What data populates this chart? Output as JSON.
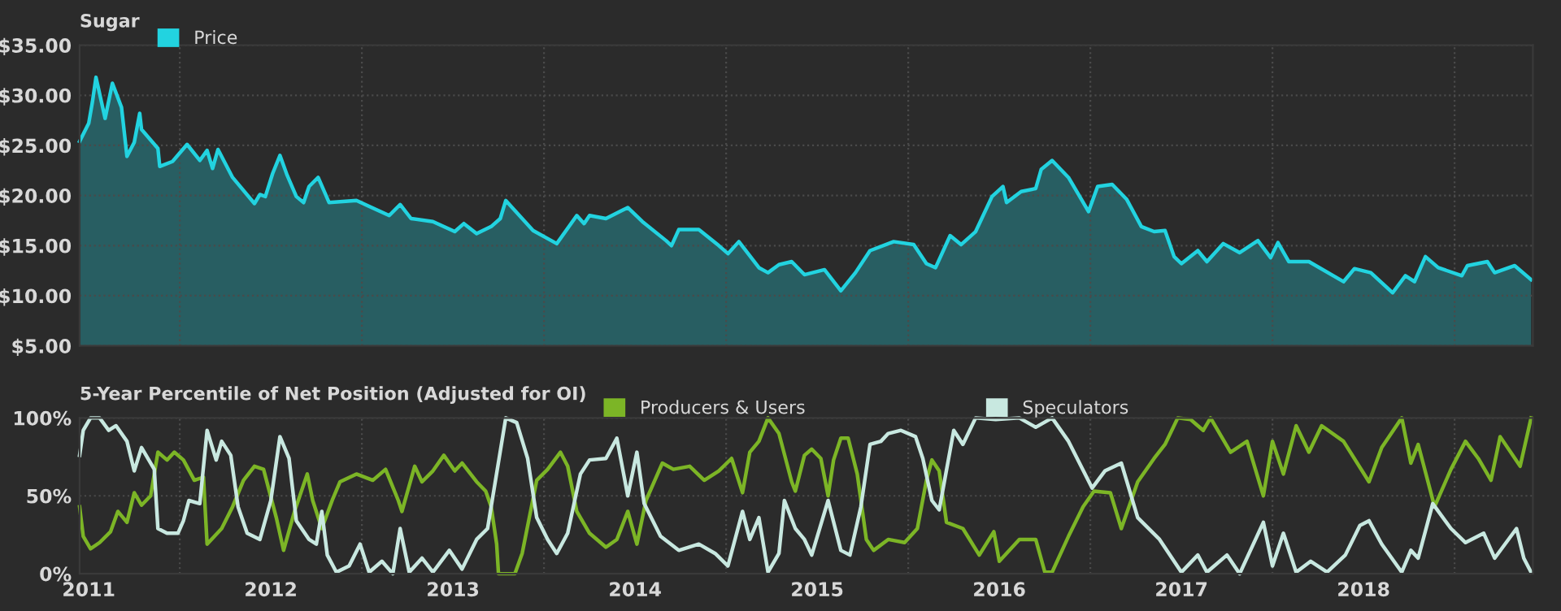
{
  "chart_data": [
    {
      "type": "area",
      "title": "Sugar",
      "legend": "top left",
      "grid": true,
      "tick_labels": "y",
      "xlim": [
        2010.95,
        2018.93
      ],
      "xticks": [
        2011,
        2012,
        2013,
        2014,
        2015,
        2016,
        2017,
        2018,
        {
          "value": 2011.5,
          "label": null
        },
        {
          "value": 2012.5,
          "label": null
        },
        {
          "value": 2013.5,
          "label": null
        },
        {
          "value": 2014.5,
          "label": null
        },
        {
          "value": 2015.5,
          "label": null
        },
        {
          "value": 2016.5,
          "label": null
        },
        {
          "value": 2017.5,
          "label": null
        },
        {
          "value": 2018.5,
          "label": null
        }
      ],
      "ylim": [
        5,
        35
      ],
      "yticks": [
        {
          "value": 5,
          "label": "$5.00"
        },
        {
          "value": 10,
          "label": "$10.00"
        },
        {
          "value": 15,
          "label": "$15.00"
        },
        {
          "value": 20,
          "label": "$20.00"
        },
        {
          "value": 25,
          "label": "$25.00"
        },
        {
          "value": 30,
          "label": "$30.00"
        },
        {
          "value": 35,
          "label": "$35.00"
        }
      ],
      "series": [
        {
          "name": "Price",
          "color": "#22d3e0",
          "x": [
            2010.95,
            2011.0,
            2011.02,
            2011.04,
            2011.09,
            2011.13,
            2011.18,
            2011.21,
            2011.25,
            2011.28,
            2011.29,
            2011.38,
            2011.39,
            2011.46,
            2011.54,
            2011.61,
            2011.65,
            2011.68,
            2011.71,
            2011.79,
            2011.91,
            2011.94,
            2011.97,
            2012.01,
            2012.05,
            2012.09,
            2012.14,
            2012.18,
            2012.21,
            2012.26,
            2012.32,
            2012.47,
            2012.65,
            2012.71,
            2012.77,
            2012.89,
            2013.01,
            2013.06,
            2013.13,
            2013.21,
            2013.26,
            2013.29,
            2013.44,
            2013.54,
            2013.57,
            2013.68,
            2013.72,
            2013.75,
            2013.84,
            2013.96,
            2014.04,
            2014.17,
            2014.2,
            2014.24,
            2014.35,
            2014.46,
            2014.51,
            2014.57,
            2014.68,
            2014.73,
            2014.79,
            2014.86,
            2014.93,
            2015.04,
            2015.13,
            2015.21,
            2015.29,
            2015.42,
            2015.53,
            2015.6,
            2015.65,
            2015.73,
            2015.79,
            2015.87,
            2015.96,
            2016.02,
            2016.04,
            2016.12,
            2016.2,
            2016.23,
            2016.29,
            2016.38,
            2016.49,
            2016.54,
            2016.62,
            2016.7,
            2016.78,
            2016.85,
            2016.91,
            2016.96,
            2017.0,
            2017.09,
            2017.14,
            2017.23,
            2017.32,
            2017.42,
            2017.49,
            2017.53,
            2017.59,
            2017.7,
            2017.89,
            2017.95,
            2018.04,
            2018.16,
            2018.23,
            2018.28,
            2018.34,
            2018.41,
            2018.54,
            2018.57,
            2018.68,
            2018.72,
            2018.83,
            2018.92
          ],
          "values": [
            25.4,
            27.2,
            29.3,
            31.8,
            27.7,
            31.2,
            28.8,
            23.9,
            25.3,
            28.2,
            26.6,
            24.7,
            22.9,
            23.4,
            25.1,
            23.5,
            24.5,
            22.7,
            24.6,
            21.8,
            19.2,
            20.1,
            19.9,
            22.2,
            24.0,
            22.0,
            19.9,
            19.3,
            20.9,
            21.8,
            19.3,
            19.5,
            18.0,
            19.1,
            17.7,
            17.4,
            16.4,
            17.2,
            16.2,
            16.9,
            17.7,
            19.5,
            16.5,
            15.5,
            15.2,
            18.0,
            17.2,
            18.0,
            17.7,
            18.8,
            17.4,
            15.5,
            15.0,
            16.6,
            16.6,
            15.0,
            14.2,
            15.4,
            12.8,
            12.3,
            13.1,
            13.4,
            12.1,
            12.6,
            10.5,
            12.3,
            14.5,
            15.4,
            15.1,
            13.2,
            12.8,
            16.0,
            15.1,
            16.4,
            19.9,
            20.9,
            19.3,
            20.4,
            20.7,
            22.6,
            23.5,
            21.8,
            18.4,
            20.9,
            21.1,
            19.6,
            16.9,
            16.4,
            16.5,
            13.9,
            13.2,
            14.5,
            13.4,
            15.2,
            14.3,
            15.5,
            13.8,
            15.3,
            13.4,
            13.4,
            11.4,
            12.7,
            12.3,
            10.3,
            12.0,
            11.4,
            13.9,
            12.8,
            12.0,
            13.0,
            13.4,
            12.3,
            13.0,
            11.6
          ]
        }
      ]
    },
    {
      "type": "line",
      "title": "5-Year Percentile of Net Position (Adjusted for OI)",
      "legend": "top left",
      "grid": true,
      "xlim": [
        2010.95,
        2018.93
      ],
      "xticks": [
        2011,
        2012,
        2013,
        2014,
        2015,
        2016,
        2017,
        2018,
        {
          "value": 2011.5,
          "label": null
        },
        {
          "value": 2012.5,
          "label": null
        },
        {
          "value": 2013.5,
          "label": null
        },
        {
          "value": 2014.5,
          "label": null
        },
        {
          "value": 2015.5,
          "label": null
        },
        {
          "value": 2016.5,
          "label": null
        },
        {
          "value": 2017.5,
          "label": null
        },
        {
          "value": 2018.5,
          "label": null
        }
      ],
      "ylim": [
        0,
        100
      ],
      "yticks": [
        {
          "value": 0,
          "label": "0%"
        },
        {
          "value": 50,
          "label": "50%"
        },
        {
          "value": 100,
          "label": "100%"
        }
      ],
      "series": [
        {
          "name": "Producers & Users",
          "color": "#7cb526",
          "x": [
            2010.95,
            2010.97,
            2011.01,
            2011.06,
            2011.12,
            2011.16,
            2011.21,
            2011.25,
            2011.29,
            2011.34,
            2011.38,
            2011.43,
            2011.47,
            2011.52,
            2011.58,
            2011.63,
            2011.65,
            2011.73,
            2011.79,
            2011.85,
            2011.91,
            2011.96,
            2012.03,
            2012.07,
            2012.13,
            2012.2,
            2012.23,
            2012.28,
            2012.34,
            2012.38,
            2012.47,
            2012.56,
            2012.63,
            2012.7,
            2012.72,
            2012.79,
            2012.83,
            2012.89,
            2012.95,
            2013.01,
            2013.05,
            2013.13,
            2013.18,
            2013.21,
            2013.24,
            2013.25,
            2013.34,
            2013.38,
            2013.46,
            2013.52,
            2013.59,
            2013.63,
            2013.68,
            2013.75,
            2013.84,
            2013.9,
            2013.96,
            2014.01,
            2014.06,
            2014.15,
            2014.21,
            2014.3,
            2014.38,
            2014.46,
            2014.53,
            2014.59,
            2014.63,
            2014.68,
            2014.73,
            2014.79,
            2014.86,
            2014.88,
            2014.93,
            2014.97,
            2015.02,
            2015.06,
            2015.09,
            2015.13,
            2015.17,
            2015.22,
            2015.27,
            2015.31,
            2015.39,
            2015.48,
            2015.55,
            2015.6,
            2015.63,
            2015.67,
            2015.71,
            2015.8,
            2015.89,
            2015.97,
            2016.0,
            2016.11,
            2016.2,
            2016.25,
            2016.29,
            2016.38,
            2016.46,
            2016.52,
            2016.61,
            2016.67,
            2016.76,
            2016.85,
            2016.91,
            2016.98,
            2017.05,
            2017.12,
            2017.16,
            2017.27,
            2017.36,
            2017.45,
            2017.5,
            2017.56,
            2017.63,
            2017.7,
            2017.77,
            2017.89,
            2018.03,
            2018.1,
            2018.21,
            2018.26,
            2018.3,
            2018.39,
            2018.48,
            2018.56,
            2018.63,
            2018.7,
            2018.75,
            2018.86,
            2018.92
          ],
          "values": [
            43,
            24,
            16,
            20,
            27,
            40,
            33,
            52,
            44,
            50,
            78,
            73,
            78,
            73,
            60,
            62,
            19,
            29,
            43,
            60,
            69,
            67,
            36,
            15,
            40,
            64,
            47,
            29,
            48,
            59,
            64,
            60,
            67,
            47,
            40,
            69,
            59,
            66,
            76,
            66,
            71,
            59,
            53,
            43,
            19,
            0,
            0,
            13,
            60,
            67,
            78,
            69,
            40,
            26,
            17,
            22,
            40,
            19,
            47,
            71,
            67,
            69,
            60,
            66,
            74,
            52,
            78,
            85,
            100,
            90,
            59,
            53,
            76,
            80,
            74,
            50,
            73,
            87,
            87,
            64,
            22,
            15,
            22,
            20,
            29,
            60,
            73,
            66,
            33,
            29,
            12,
            27,
            8,
            22,
            22,
            1,
            1,
            24,
            43,
            53,
            52,
            29,
            59,
            74,
            83,
            100,
            99,
            92,
            100,
            78,
            85,
            50,
            85,
            64,
            95,
            78,
            95,
            85,
            59,
            81,
            100,
            71,
            83,
            43,
            67,
            85,
            74,
            60,
            88,
            69,
            100
          ]
        },
        {
          "name": "Speculators",
          "color": "#c8e8e0",
          "x": [
            2010.95,
            2010.97,
            2011.01,
            2011.06,
            2011.11,
            2011.15,
            2011.21,
            2011.25,
            2011.29,
            2011.36,
            2011.38,
            2011.43,
            2011.49,
            2011.52,
            2011.55,
            2011.61,
            2011.65,
            2011.7,
            2011.73,
            2011.78,
            2011.82,
            2011.87,
            2011.94,
            2012.0,
            2012.05,
            2012.1,
            2012.14,
            2012.21,
            2012.25,
            2012.28,
            2012.31,
            2012.36,
            2012.43,
            2012.49,
            2012.54,
            2012.61,
            2012.67,
            2012.71,
            2012.76,
            2012.83,
            2012.89,
            2012.98,
            2013.05,
            2013.13,
            2013.19,
            2013.29,
            2013.35,
            2013.41,
            2013.46,
            2013.52,
            2013.57,
            2013.63,
            2013.7,
            2013.75,
            2013.84,
            2013.9,
            2013.96,
            2014.01,
            2014.05,
            2014.14,
            2014.24,
            2014.35,
            2014.44,
            2014.51,
            2014.59,
            2014.63,
            2014.68,
            2014.73,
            2014.79,
            2014.82,
            2014.88,
            2014.93,
            2014.97,
            2015.06,
            2015.13,
            2015.18,
            2015.24,
            2015.29,
            2015.35,
            2015.39,
            2015.46,
            2015.54,
            2015.58,
            2015.63,
            2015.67,
            2015.75,
            2015.8,
            2015.87,
            2015.98,
            2016.11,
            2016.2,
            2016.29,
            2016.38,
            2016.51,
            2016.58,
            2016.67,
            2016.76,
            2016.88,
            2017.0,
            2017.09,
            2017.14,
            2017.25,
            2017.32,
            2017.45,
            2017.5,
            2017.56,
            2017.63,
            2017.71,
            2017.8,
            2017.9,
            2017.98,
            2018.03,
            2018.1,
            2018.21,
            2018.26,
            2018.3,
            2018.38,
            2018.48,
            2018.56,
            2018.66,
            2018.72,
            2018.84,
            2018.88,
            2018.92
          ],
          "values": [
            76,
            92,
            100,
            100,
            92,
            95,
            85,
            66,
            81,
            67,
            29,
            26,
            26,
            34,
            47,
            45,
            92,
            73,
            85,
            76,
            43,
            26,
            22,
            47,
            88,
            74,
            34,
            22,
            19,
            40,
            12,
            1,
            5,
            19,
            1,
            8,
            0,
            29,
            1,
            10,
            1,
            15,
            3,
            22,
            29,
            100,
            97,
            74,
            36,
            22,
            13,
            26,
            64,
            73,
            74,
            87,
            50,
            78,
            45,
            24,
            15,
            19,
            13,
            5,
            40,
            22,
            36,
            1,
            13,
            47,
            29,
            22,
            12,
            47,
            15,
            12,
            43,
            83,
            85,
            90,
            92,
            88,
            74,
            47,
            41,
            92,
            83,
            100,
            99,
            100,
            94,
            100,
            85,
            55,
            66,
            71,
            36,
            22,
            1,
            12,
            1,
            12,
            0,
            33,
            5,
            26,
            1,
            8,
            1,
            12,
            31,
            34,
            19,
            1,
            15,
            10,
            45,
            29,
            20,
            26,
            10,
            29,
            10,
            1
          ]
        }
      ]
    }
  ]
}
